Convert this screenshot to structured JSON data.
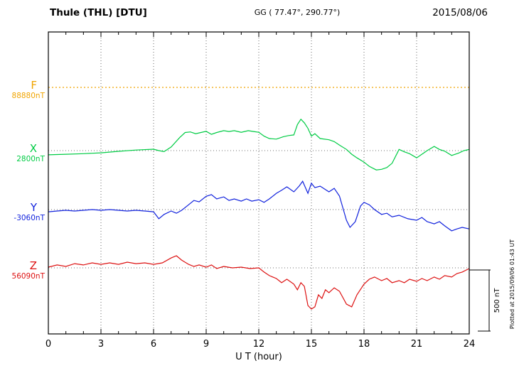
{
  "header": {
    "station": "Thule (THL)  [DTU]",
    "coords": "GG ( 77.47°, 290.77°)",
    "date": "2015/08/06"
  },
  "footer": {
    "xlabel": "U T (hour)"
  },
  "scalebar_label": "500 nT",
  "plotted_note": "Plotted at 2015/09/06 01:43 UT",
  "chart_data": {
    "type": "line",
    "title": "Thule (THL) [DTU] magnetogram",
    "date": "2015/08/06",
    "xlabel": "U T (hour)",
    "x_range": [
      0,
      24
    ],
    "x_ticks": [
      0,
      3,
      6,
      9,
      12,
      15,
      18,
      21,
      24
    ],
    "grid": "dotted vertical at 3-hour marks, dotted horizontal at component baselines",
    "scale_reference": {
      "label": "500 nT",
      "nT": 500
    },
    "series": [
      {
        "name": "F",
        "label": "F",
        "baseline_label": "88880nT",
        "color": "#f0a400",
        "style": "dotted",
        "points": [
          [
            0,
            0
          ],
          [
            24,
            0
          ]
        ]
      },
      {
        "name": "X",
        "label": "X",
        "baseline_label": "2800nT",
        "color": "#00cc44",
        "style": "solid",
        "points": [
          [
            0,
            -35
          ],
          [
            1,
            -30
          ],
          [
            2,
            -25
          ],
          [
            3,
            -18
          ],
          [
            4,
            -6
          ],
          [
            5,
            5
          ],
          [
            6,
            12
          ],
          [
            6.3,
            0
          ],
          [
            6.6,
            -8
          ],
          [
            7,
            30
          ],
          [
            7.5,
            110
          ],
          [
            7.8,
            150
          ],
          [
            8.1,
            155
          ],
          [
            8.4,
            140
          ],
          [
            8.7,
            150
          ],
          [
            9,
            160
          ],
          [
            9.3,
            135
          ],
          [
            9.6,
            150
          ],
          [
            10,
            165
          ],
          [
            10.3,
            158
          ],
          [
            10.6,
            165
          ],
          [
            11,
            152
          ],
          [
            11.4,
            165
          ],
          [
            11.7,
            158
          ],
          [
            12,
            152
          ],
          [
            12.3,
            120
          ],
          [
            12.6,
            100
          ],
          [
            13,
            95
          ],
          [
            13.4,
            115
          ],
          [
            13.7,
            125
          ],
          [
            14,
            130
          ],
          [
            14.2,
            215
          ],
          [
            14.4,
            260
          ],
          [
            14.6,
            230
          ],
          [
            14.8,
            185
          ],
          [
            15,
            120
          ],
          [
            15.2,
            140
          ],
          [
            15.5,
            100
          ],
          [
            16,
            90
          ],
          [
            16.3,
            75
          ],
          [
            16.6,
            45
          ],
          [
            17,
            10
          ],
          [
            17.3,
            -30
          ],
          [
            17.6,
            -60
          ],
          [
            18,
            -95
          ],
          [
            18.3,
            -130
          ],
          [
            18.7,
            -160
          ],
          [
            19,
            -155
          ],
          [
            19.3,
            -140
          ],
          [
            19.6,
            -105
          ],
          [
            20,
            10
          ],
          [
            20.3,
            -10
          ],
          [
            20.6,
            -25
          ],
          [
            21,
            -60
          ],
          [
            21.3,
            -30
          ],
          [
            21.6,
            0
          ],
          [
            22,
            35
          ],
          [
            22.3,
            10
          ],
          [
            22.6,
            -5
          ],
          [
            23,
            -40
          ],
          [
            23.4,
            -20
          ],
          [
            23.7,
            0
          ],
          [
            24,
            10
          ]
        ]
      },
      {
        "name": "Y",
        "label": "Y",
        "baseline_label": "-3060nT",
        "color": "#1122dd",
        "style": "solid",
        "points": [
          [
            0,
            -18
          ],
          [
            0.5,
            -12
          ],
          [
            1,
            -6
          ],
          [
            1.5,
            -12
          ],
          [
            2,
            -6
          ],
          [
            2.5,
            0
          ],
          [
            3,
            -6
          ],
          [
            3.5,
            0
          ],
          [
            4,
            -6
          ],
          [
            4.5,
            -12
          ],
          [
            5,
            -6
          ],
          [
            5.5,
            -12
          ],
          [
            6,
            -18
          ],
          [
            6.3,
            -76
          ],
          [
            6.6,
            -40
          ],
          [
            7,
            -12
          ],
          [
            7.3,
            -30
          ],
          [
            7.6,
            -6
          ],
          [
            8,
            40
          ],
          [
            8.3,
            76
          ],
          [
            8.6,
            64
          ],
          [
            9,
            110
          ],
          [
            9.3,
            124
          ],
          [
            9.6,
            88
          ],
          [
            10,
            105
          ],
          [
            10.3,
            76
          ],
          [
            10.6,
            88
          ],
          [
            11,
            70
          ],
          [
            11.3,
            88
          ],
          [
            11.6,
            70
          ],
          [
            12,
            82
          ],
          [
            12.3,
            60
          ],
          [
            12.6,
            88
          ],
          [
            13,
            135
          ],
          [
            13.3,
            160
          ],
          [
            13.6,
            188
          ],
          [
            14,
            147
          ],
          [
            14.3,
            194
          ],
          [
            14.5,
            235
          ],
          [
            14.8,
            135
          ],
          [
            15,
            218
          ],
          [
            15.2,
            182
          ],
          [
            15.5,
            194
          ],
          [
            16,
            147
          ],
          [
            16.3,
            176
          ],
          [
            16.6,
            112
          ],
          [
            17,
            -88
          ],
          [
            17.2,
            -147
          ],
          [
            17.5,
            -100
          ],
          [
            17.8,
            30
          ],
          [
            18,
            60
          ],
          [
            18.3,
            40
          ],
          [
            18.6,
            0
          ],
          [
            19,
            -40
          ],
          [
            19.3,
            -30
          ],
          [
            19.6,
            -60
          ],
          [
            20,
            -47
          ],
          [
            20.5,
            -76
          ],
          [
            21,
            -88
          ],
          [
            21.3,
            -65
          ],
          [
            21.6,
            -100
          ],
          [
            22,
            -118
          ],
          [
            22.3,
            -100
          ],
          [
            22.6,
            -135
          ],
          [
            23,
            -176
          ],
          [
            23.3,
            -160
          ],
          [
            23.6,
            -147
          ],
          [
            24,
            -160
          ]
        ]
      },
      {
        "name": "Z",
        "label": "Z",
        "baseline_label": "56090nT",
        "color": "#dd1111",
        "style": "solid",
        "points": [
          [
            0,
            6
          ],
          [
            0.5,
            24
          ],
          [
            1,
            12
          ],
          [
            1.5,
            35
          ],
          [
            2,
            24
          ],
          [
            2.5,
            41
          ],
          [
            3,
            29
          ],
          [
            3.5,
            41
          ],
          [
            4,
            29
          ],
          [
            4.5,
            47
          ],
          [
            5,
            35
          ],
          [
            5.5,
            41
          ],
          [
            6,
            29
          ],
          [
            6.5,
            41
          ],
          [
            7,
            82
          ],
          [
            7.3,
            100
          ],
          [
            7.6,
            64
          ],
          [
            8,
            29
          ],
          [
            8.3,
            12
          ],
          [
            8.6,
            24
          ],
          [
            9,
            6
          ],
          [
            9.3,
            24
          ],
          [
            9.6,
            -6
          ],
          [
            10,
            12
          ],
          [
            10.5,
            0
          ],
          [
            11,
            6
          ],
          [
            11.5,
            -6
          ],
          [
            12,
            0
          ],
          [
            12.3,
            -35
          ],
          [
            12.6,
            -64
          ],
          [
            13,
            -88
          ],
          [
            13.3,
            -123
          ],
          [
            13.6,
            -94
          ],
          [
            14,
            -135
          ],
          [
            14.2,
            -182
          ],
          [
            14.4,
            -123
          ],
          [
            14.6,
            -153
          ],
          [
            14.8,
            -312
          ],
          [
            15,
            -341
          ],
          [
            15.2,
            -323
          ],
          [
            15.4,
            -223
          ],
          [
            15.6,
            -253
          ],
          [
            15.8,
            -182
          ],
          [
            16,
            -206
          ],
          [
            16.3,
            -165
          ],
          [
            16.6,
            -194
          ],
          [
            17,
            -300
          ],
          [
            17.3,
            -323
          ],
          [
            17.6,
            -223
          ],
          [
            18,
            -135
          ],
          [
            18.3,
            -94
          ],
          [
            18.6,
            -76
          ],
          [
            19,
            -106
          ],
          [
            19.3,
            -88
          ],
          [
            19.6,
            -123
          ],
          [
            20,
            -106
          ],
          [
            20.3,
            -123
          ],
          [
            20.6,
            -94
          ],
          [
            21,
            -112
          ],
          [
            21.3,
            -88
          ],
          [
            21.6,
            -106
          ],
          [
            22,
            -76
          ],
          [
            22.3,
            -94
          ],
          [
            22.6,
            -64
          ],
          [
            23,
            -76
          ],
          [
            23.3,
            -47
          ],
          [
            23.6,
            -35
          ],
          [
            24,
            -6
          ]
        ]
      }
    ]
  }
}
